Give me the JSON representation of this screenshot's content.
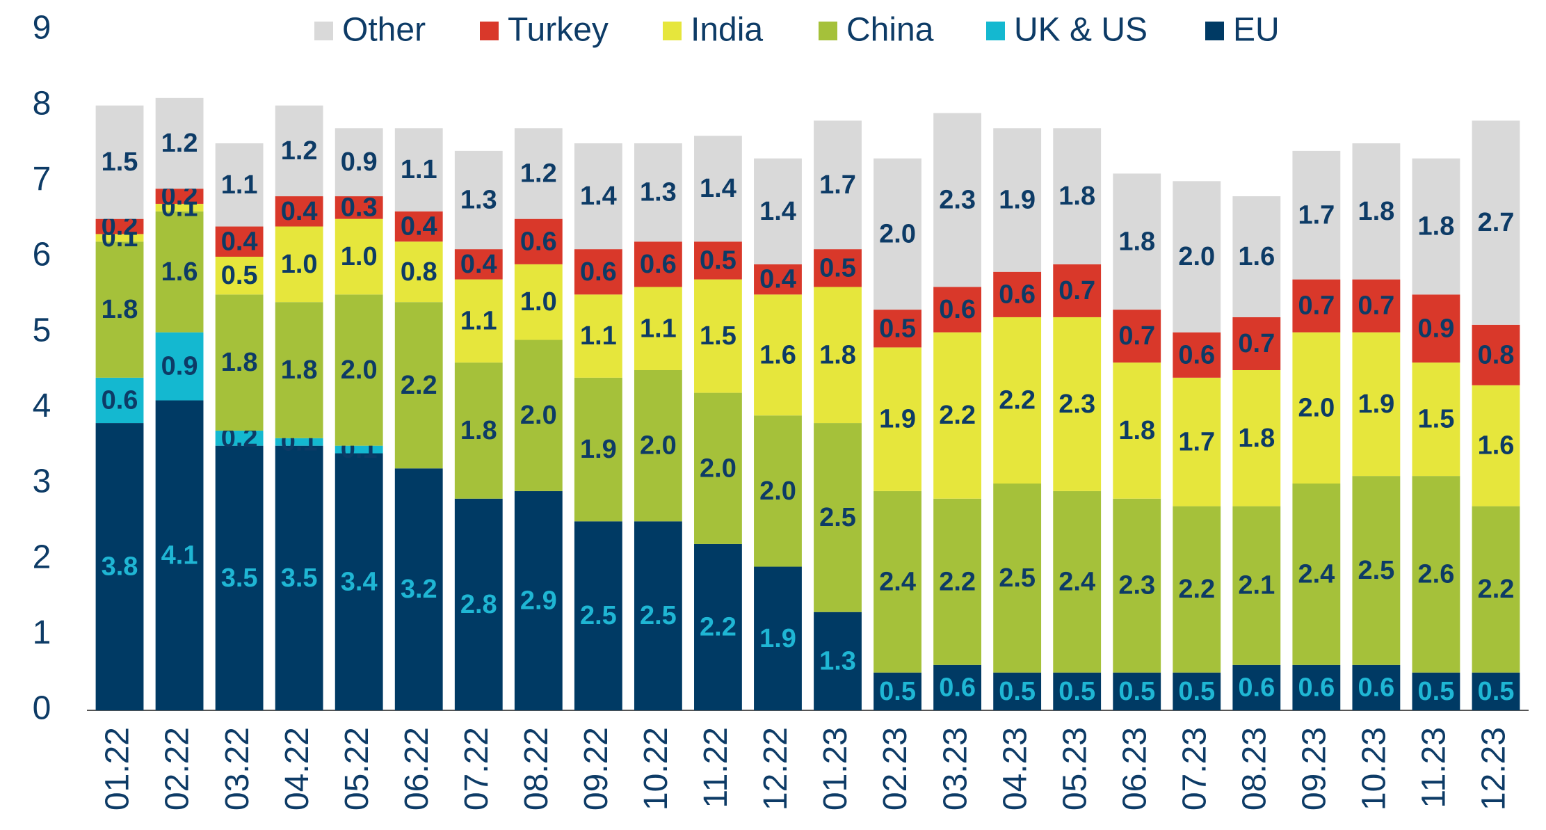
{
  "chart_data": {
    "type": "stacked_bar",
    "categories": [
      "01.22",
      "02.22",
      "03.22",
      "04.22",
      "05.22",
      "06.22",
      "07.22",
      "08.22",
      "09.22",
      "10.22",
      "11.22",
      "12.22",
      "01.23",
      "02.23",
      "03.23",
      "04.23",
      "05.23",
      "06.23",
      "07.23",
      "08.23",
      "09.23",
      "10.23",
      "11.23",
      "12.23"
    ],
    "series": [
      {
        "name": "EU",
        "color": "#003a64",
        "label_color": "#1fb6d4",
        "values": [
          3.8,
          4.1,
          3.5,
          3.5,
          3.4,
          3.2,
          2.8,
          2.9,
          2.5,
          2.5,
          2.2,
          1.9,
          1.3,
          0.5,
          0.6,
          0.5,
          0.5,
          0.5,
          0.5,
          0.6,
          0.6,
          0.6,
          0.5,
          0.5
        ]
      },
      {
        "name": "UK & US",
        "color": "#14b8d0",
        "label_color": "#0d3b66",
        "values": [
          0.6,
          0.9,
          0.2,
          0.1,
          0.1,
          null,
          null,
          null,
          null,
          null,
          null,
          null,
          null,
          null,
          null,
          null,
          null,
          null,
          null,
          null,
          null,
          null,
          null,
          null
        ]
      },
      {
        "name": "China",
        "color": "#a5c13a",
        "label_color": "#0d3b66",
        "values": [
          1.8,
          1.6,
          1.8,
          1.8,
          2.0,
          2.2,
          1.8,
          2.0,
          1.9,
          2.0,
          2.0,
          2.0,
          2.5,
          2.4,
          2.2,
          2.5,
          2.4,
          2.3,
          2.2,
          2.1,
          2.4,
          2.5,
          2.6,
          2.2
        ],
        "value_labels": [
          "1.8",
          "1.6",
          "1.8",
          "1.8",
          "2.0",
          "2.2",
          "1.8",
          "2.0",
          "1.9",
          "2.0",
          "2.0",
          "2.0",
          "2.5",
          "2.4",
          "2.2",
          "2.5",
          "2.4",
          "2.3",
          "2.2",
          "2.1",
          "2.4",
          "2.5",
          "2.6",
          "2.2"
        ]
      },
      {
        "name": "India",
        "color": "#e6e63c",
        "label_color": "#0d3b66",
        "values": [
          0.1,
          0.1,
          0.5,
          1.0,
          1.0,
          0.8,
          1.1,
          1.0,
          1.1,
          1.1,
          1.5,
          1.6,
          1.8,
          1.9,
          2.2,
          2.2,
          2.3,
          1.8,
          1.7,
          1.8,
          2.0,
          1.9,
          1.5,
          1.6
        ],
        "value_labels": [
          "0.1",
          "0.1",
          "0.5",
          "1.0",
          "1.0",
          "0.8",
          "1.1",
          "1.0",
          "1.1",
          "1.1",
          "1.5",
          "1.6",
          "1.8",
          "1.9",
          "2.2",
          "2.2",
          "2.3",
          "1.8",
          "1.7",
          "1.8",
          "2.0",
          "1.9",
          "1.5",
          "1.6"
        ]
      },
      {
        "name": "Turkey",
        "color": "#d9382a",
        "label_color": "#0d3b66",
        "values": [
          0.2,
          0.2,
          0.4,
          0.4,
          0.3,
          0.4,
          0.4,
          0.6,
          0.6,
          0.6,
          0.5,
          0.4,
          0.5,
          0.5,
          0.6,
          0.6,
          0.7,
          0.7,
          0.6,
          0.7,
          0.7,
          0.7,
          0.9,
          0.8
        ]
      },
      {
        "name": "Other",
        "color": "#d9d9d9",
        "label_color": "#0d3b66",
        "values": [
          1.5,
          1.2,
          1.1,
          1.2,
          0.9,
          1.1,
          1.3,
          1.2,
          1.4,
          1.3,
          1.4,
          1.4,
          1.7,
          2.0,
          2.3,
          1.9,
          1.8,
          1.8,
          2.0,
          1.6,
          1.7,
          1.8,
          1.8,
          2.7
        ],
        "value_labels": [
          "1.5",
          "1.2",
          "1.1",
          "1.2",
          "0.9",
          "1.1",
          "1.3",
          "1.2",
          "1.4",
          "1.3",
          "1.4",
          "1.4",
          "1.7",
          "2.0",
          "2.3",
          "1.9",
          "1.8",
          "1.8",
          "2.0",
          "1.6",
          "1.7",
          "1.8",
          "1.8",
          "2.7"
        ]
      }
    ],
    "legend_order": [
      5,
      4,
      3,
      2,
      1,
      0
    ],
    "legend": "top",
    "ylim": [
      0,
      9
    ],
    "yticks": [
      0,
      1,
      2,
      3,
      4,
      5,
      6,
      7,
      8,
      9
    ],
    "grid": false
  }
}
